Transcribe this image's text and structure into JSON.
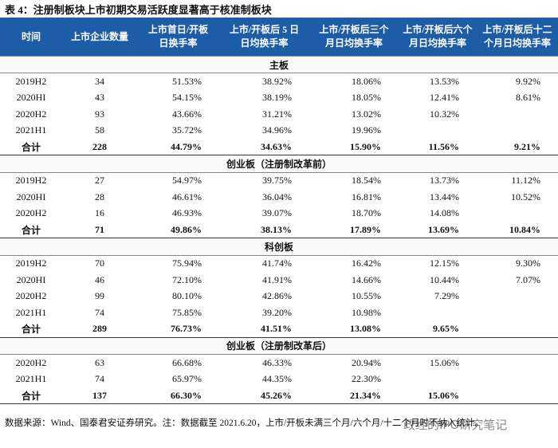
{
  "title": "表 4：注册制板块上市初期交易活跃度显著高于核准制板块",
  "table": {
    "header": [
      "时间",
      "上市企业数量",
      "上市首日/开板\n日换手率",
      "上市/开板后 5 日\n日均换手率",
      "上市/开板后三个\n月日均换手率",
      "上市/开板后六个\n月日均换手率",
      "上市/开板后十二\n个月日均换手率"
    ],
    "sections": [
      {
        "name": "主板",
        "rows": [
          [
            "2019H2",
            "34",
            "51.53%",
            "38.92%",
            "18.06%",
            "13.53%",
            "9.92%"
          ],
          [
            "2020HI",
            "43",
            "54.15%",
            "38.19%",
            "18.05%",
            "12.41%",
            "8.61%"
          ],
          [
            "2020H2",
            "93",
            "43.66%",
            "31.21%",
            "13.02%",
            "10.32%",
            null
          ],
          [
            "2021H1",
            "58",
            "35.72%",
            "34.96%",
            "19.96%",
            null,
            null
          ]
        ],
        "total": [
          "合计",
          "228",
          "44.79%",
          "34.63%",
          "15.90%",
          "11.56%",
          "9.21%"
        ]
      },
      {
        "name": "创业板（注册制改革前）",
        "rows": [
          [
            "2019H2",
            "27",
            "54.97%",
            "39.75%",
            "18.54%",
            "13.73%",
            "11.12%"
          ],
          [
            "2020HI",
            "28",
            "46.61%",
            "36.04%",
            "16.81%",
            "13.44%",
            "10.52%"
          ],
          [
            "2020H2",
            "16",
            "46.93%",
            "39.07%",
            "18.70%",
            "14.08%",
            null
          ]
        ],
        "total": [
          "合计",
          "71",
          "49.86%",
          "38.13%",
          "17.89%",
          "13.69%",
          "10.84%"
        ]
      },
      {
        "name": "科创板",
        "rows": [
          [
            "2019H2",
            "70",
            "75.94%",
            "41.74%",
            "16.42%",
            "12.15%",
            "9.30%"
          ],
          [
            "2020HI",
            "46",
            "72.10%",
            "41.91%",
            "14.66%",
            "10.44%",
            "7.07%"
          ],
          [
            "2020H2",
            "99",
            "80.10%",
            "42.86%",
            "10.55%",
            "7.29%",
            null
          ],
          [
            "2021H1",
            "74",
            "75.85%",
            "39.20%",
            "10.98%",
            null,
            null
          ]
        ],
        "total": [
          "合计",
          "289",
          "76.73%",
          "41.51%",
          "13.08%",
          "9.65%",
          null
        ]
      },
      {
        "name": "创业板（注册制改革后）",
        "rows": [
          [
            "2020H2",
            "63",
            "66.68%",
            "46.33%",
            "20.94%",
            "15.06%",
            null
          ],
          [
            "2021H1",
            "74",
            "65.97%",
            "44.35%",
            "22.30%",
            null,
            null
          ]
        ],
        "total": [
          "合计",
          "137",
          "66.30%",
          "45.26%",
          "21.34%",
          "15.06%",
          null
        ]
      }
    ]
  },
  "source": "数据来源：Wind、国泰君安证券研究。注：数据截至 2021.6.20，上市/开板未满三个月/六个月/十二个月时不纳入统计。",
  "watermark": "政经的IPO研究笔记"
}
